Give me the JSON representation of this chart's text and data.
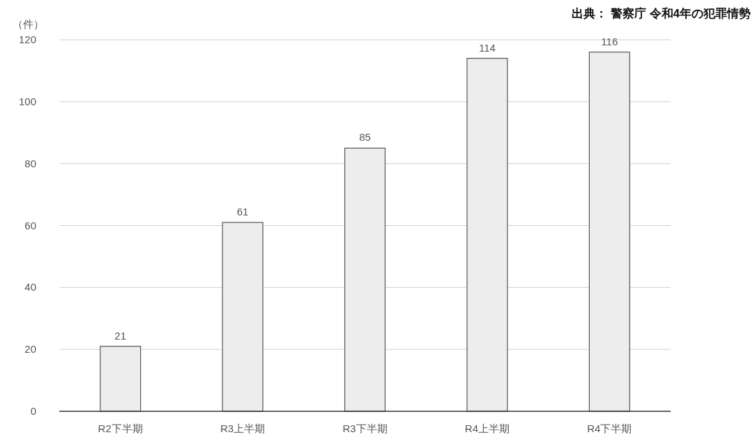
{
  "chart_data": {
    "type": "bar",
    "ylabel": "（件）",
    "annotations": [
      "出典： 警察庁  令和4年の犯罪情勢"
    ],
    "categories": [
      "R2下半期",
      "R3上半期",
      "R3下半期",
      "R4上半期",
      "R4下半期"
    ],
    "values": [
      21,
      61,
      85,
      114,
      116
    ],
    "color": "#ededed",
    "ylim": [
      0,
      120
    ],
    "yticks": [
      0,
      20,
      40,
      60,
      80,
      100,
      120
    ],
    "grid": "y",
    "data_labels": true
  }
}
